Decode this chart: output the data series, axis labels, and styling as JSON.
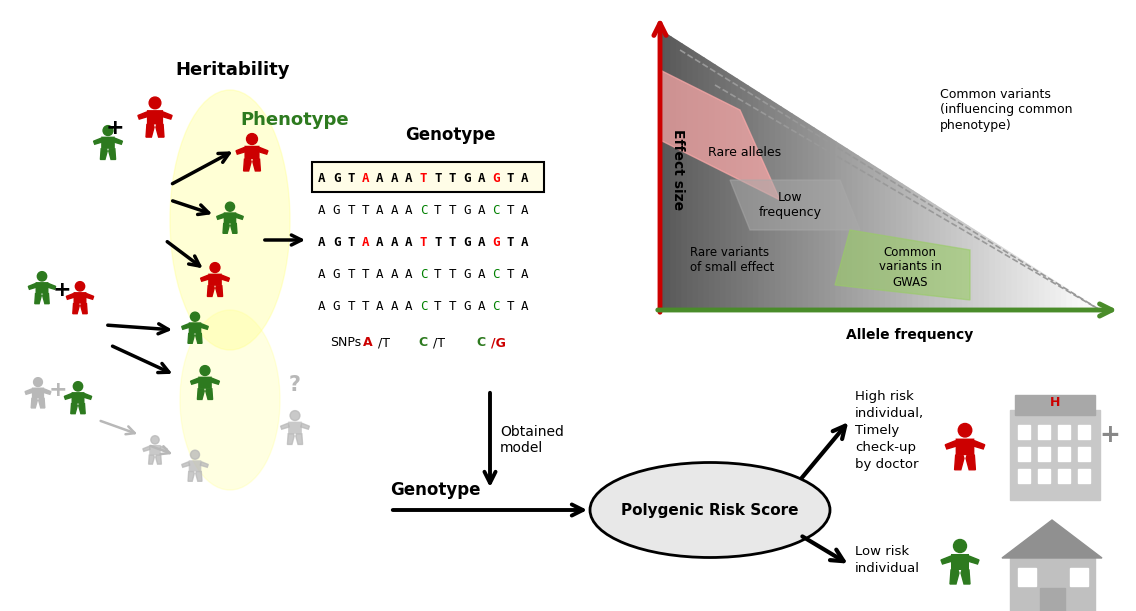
{
  "bg_color": "#ffffff",
  "person_colors": {
    "red": "#cc0000",
    "green": "#2d7a1f",
    "gray": "#b8b8b8"
  },
  "dna_sequences": [
    {
      "seq": [
        "A",
        "G",
        "T",
        "A",
        "A",
        "A",
        "A",
        "T",
        "T",
        "T",
        "G",
        "A",
        "G",
        "T",
        "A"
      ],
      "highlights": {
        "3": "red",
        "7": "red",
        "12": "red"
      },
      "bold": true,
      "boxed": true
    },
    {
      "seq": [
        "A",
        "G",
        "T",
        "T",
        "A",
        "A",
        "A",
        "C",
        "T",
        "T",
        "G",
        "A",
        "C",
        "T",
        "A"
      ],
      "highlights": {
        "7": "green",
        "12": "green"
      },
      "bold": false,
      "boxed": false
    },
    {
      "seq": [
        "A",
        "G",
        "T",
        "A",
        "A",
        "A",
        "A",
        "T",
        "T",
        "T",
        "G",
        "A",
        "G",
        "T",
        "A"
      ],
      "highlights": {
        "3": "red",
        "7": "red",
        "12": "red"
      },
      "bold": true,
      "boxed": false
    },
    {
      "seq": [
        "A",
        "G",
        "T",
        "T",
        "A",
        "A",
        "A",
        "C",
        "T",
        "T",
        "G",
        "A",
        "C",
        "T",
        "A"
      ],
      "highlights": {
        "7": "green",
        "12": "green"
      },
      "bold": false,
      "boxed": false
    },
    {
      "seq": [
        "A",
        "G",
        "T",
        "T",
        "A",
        "A",
        "A",
        "C",
        "T",
        "T",
        "G",
        "A",
        "C",
        "T",
        "A"
      ],
      "highlights": {
        "7": "green",
        "12": "green"
      },
      "bold": false,
      "boxed": false
    }
  ],
  "heritability_label": "Heritability",
  "phenotype_label": "Phenotype",
  "genotype_label": "Genotype",
  "snps_label": "SNPs",
  "obtained_model_label": "Obtained\nmodel",
  "prs_label": "Polygenic Risk Score",
  "high_risk_label": "High risk\nindividual,\nTimely\ncheck-up\nby doctor",
  "low_risk_label": "Low risk\nindividual",
  "effect_size_label": "Effect size",
  "allele_freq_label": "Allele frequency",
  "rare_alleles_label": "Rare alleles",
  "low_freq_label": "Low\nfrequency",
  "rare_variants_label": "Rare variants\nof small effect",
  "common_gwas_label": "Common\nvariants in\nGWAS",
  "common_variants_label": "Common variants\n(influencing common\nphenotype)"
}
